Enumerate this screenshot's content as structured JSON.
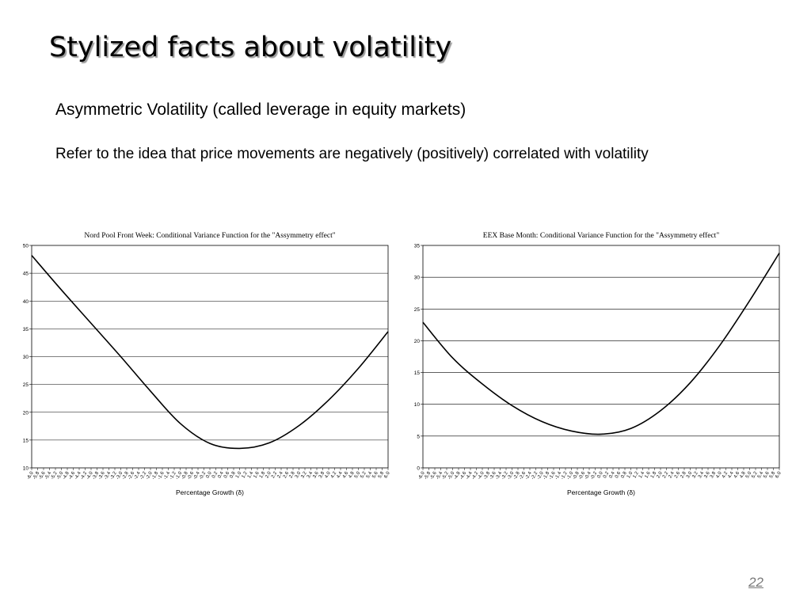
{
  "slide": {
    "title": "Stylized facts about volatility",
    "subtitle": "Asymmetric Volatility (called leverage in equity markets)",
    "body": "Refer to the idea that price movements are negatively (positively) correlated with volatility",
    "page_number": "22"
  },
  "chart_data": [
    {
      "type": "line",
      "title": "Nord Pool Front Week: Conditional Variance Function for the \"Assymmetry effect\"",
      "xlabel": "Percentage Growth (δ)",
      "ylabel": "",
      "ylim": [
        10,
        50
      ],
      "yticks": [
        10,
        15,
        20,
        25,
        30,
        35,
        40,
        45,
        50
      ],
      "grid": true,
      "x": [
        -6.0,
        -5.0,
        -4.0,
        -3.0,
        -2.0,
        -1.0,
        0.0,
        1.0,
        2.0,
        3.0,
        4.0,
        5.0,
        6.0
      ],
      "series": [
        {
          "values": [
            48.2,
            42.0,
            36.0,
            30.0,
            23.8,
            18.0,
            14.4,
            13.5,
            14.5,
            17.6,
            22.2,
            27.9,
            34.5
          ]
        }
      ],
      "color": "#000000"
    },
    {
      "type": "line",
      "title": "EEX Base Month: Conditional Variance Function for the \"Assymmetry effect\"",
      "xlabel": "Percentage Growth (δ)",
      "ylabel": "",
      "ylim": [
        0,
        35
      ],
      "yticks": [
        0,
        5,
        10,
        15,
        20,
        25,
        30,
        35
      ],
      "grid": true,
      "x": [
        -6.0,
        -5.0,
        -4.0,
        -3.0,
        -2.0,
        -1.0,
        0.0,
        1.0,
        2.0,
        3.0,
        4.0,
        5.0,
        6.0
      ],
      "series": [
        {
          "values": [
            22.9,
            17.3,
            13.2,
            9.8,
            7.3,
            5.8,
            5.3,
            6.2,
            9.0,
            13.4,
            19.3,
            26.3,
            33.8
          ]
        }
      ],
      "color": "#000000"
    }
  ]
}
